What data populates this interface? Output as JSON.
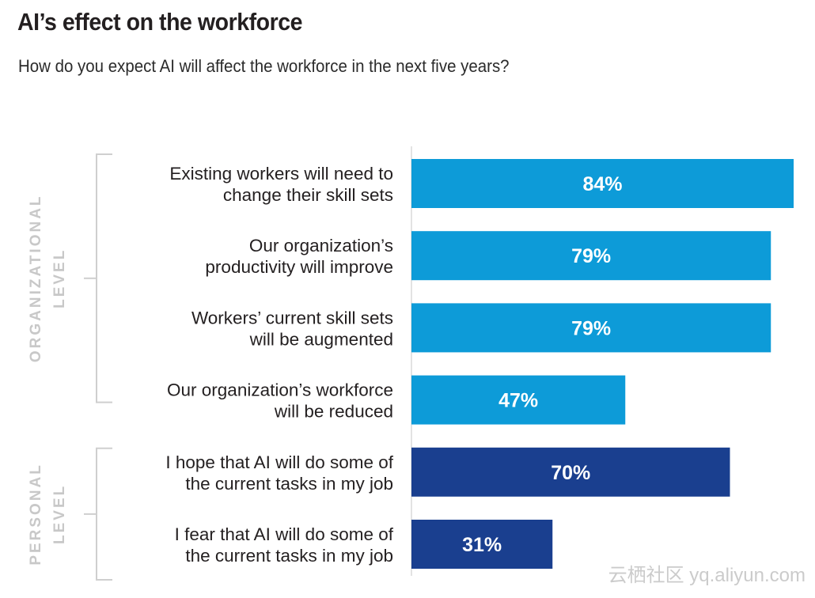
{
  "title": "AI’s effect on the workforce",
  "subtitle": "How do you expect  AI will affect the workforce in the next five years?",
  "watermark": "云栖社区 yq.aliyun.com",
  "colors": {
    "organizational": "#0d9bd8",
    "personal": "#1a3f8f",
    "bracket": "#cfcfcf",
    "group_label": "#c8c8c8"
  },
  "chart_data": {
    "type": "bar",
    "orientation": "horizontal",
    "title": "AI’s effect on the workforce",
    "subtitle": "How do you expect  AI will affect the workforce in the next five years?",
    "xlim": [
      0,
      100
    ],
    "unit": "%",
    "groups": [
      {
        "name": "ORGANIZATIONAL LEVEL",
        "lines": [
          "ORGANIZATIONAL",
          "LEVEL"
        ],
        "color": "#0d9bd8",
        "bars": [
          {
            "lines": [
              "Existing workers will need to",
              "change their skill sets"
            ],
            "value": 84,
            "label": "84%"
          },
          {
            "lines": [
              "Our organization’s",
              "productivity will improve"
            ],
            "value": 79,
            "label": "79%"
          },
          {
            "lines": [
              "Workers’ current skill sets",
              "will be augmented"
            ],
            "value": 79,
            "label": "79%"
          },
          {
            "lines": [
              "Our organization’s workforce",
              "will be reduced"
            ],
            "value": 47,
            "label": "47%"
          }
        ]
      },
      {
        "name": "PERSONAL LEVEL",
        "lines": [
          "PERSONAL",
          "LEVEL"
        ],
        "color": "#1a3f8f",
        "bars": [
          {
            "lines": [
              "I hope that AI will do some of",
              "the current tasks in my job"
            ],
            "value": 70,
            "label": "70%"
          },
          {
            "lines": [
              "I fear that AI will do some of",
              "the current  tasks in my job"
            ],
            "value": 31,
            "label": "31%"
          }
        ]
      }
    ]
  }
}
